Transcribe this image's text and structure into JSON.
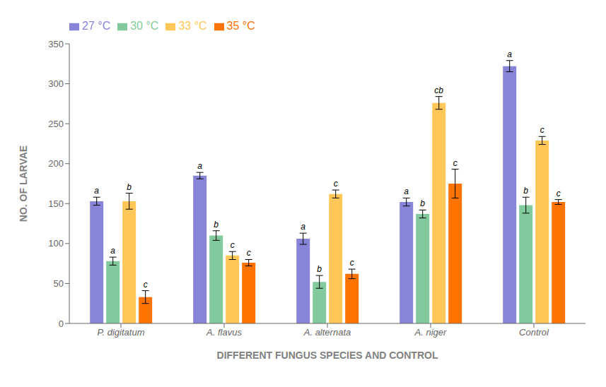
{
  "chart_data": {
    "type": "bar",
    "xlabel": "DIFFERENT FUNGUS SPECIES AND CONTROL",
    "ylabel": "NO. OF LARVAE",
    "categories": [
      "P. digitatum",
      "A. flavus",
      "A. alternata",
      "A. niger",
      "Control"
    ],
    "series": [
      {
        "name": "27 °C",
        "color": "#8884d8",
        "values": [
          153,
          185,
          106,
          152,
          322
        ],
        "errors": [
          5,
          4,
          7,
          5,
          7
        ],
        "labels": [
          "a",
          "a",
          "a",
          "a",
          "a"
        ]
      },
      {
        "name": "30 °C",
        "color": "#82ca9d",
        "values": [
          78,
          110,
          52,
          137,
          148
        ],
        "errors": [
          5,
          6,
          8,
          5,
          10
        ],
        "labels": [
          "a",
          "b",
          "b",
          "b",
          "b"
        ]
      },
      {
        "name": "33 °C",
        "color": "#ffc658",
        "values": [
          153,
          85,
          162,
          276,
          229
        ],
        "errors": [
          10,
          5,
          5,
          8,
          5
        ],
        "labels": [
          "b",
          "c",
          "c",
          "cb",
          "c"
        ]
      },
      {
        "name": "35 °C",
        "color": "#ff7300",
        "values": [
          33,
          76,
          62,
          175,
          152
        ],
        "errors": [
          8,
          4,
          6,
          18,
          3
        ],
        "labels": [
          "c",
          "c",
          "c",
          "c",
          "c"
        ]
      }
    ],
    "ylim": [
      0,
      350
    ],
    "yticks": [
      0,
      50,
      100,
      150,
      200,
      250,
      300,
      350
    ],
    "grid": false,
    "legend": "upper left"
  }
}
